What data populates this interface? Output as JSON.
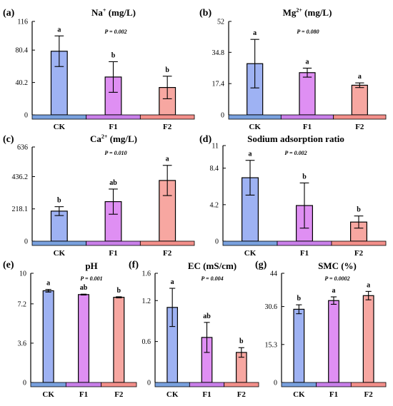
{
  "colors": {
    "CK": "#9eb2f3",
    "F1": "#df8ff3",
    "F2": "#f7a7a1",
    "CK_strip": "#79a1de",
    "F1_strip": "#c97fe9",
    "F2_strip": "#f38f8a",
    "axis": "#000000"
  },
  "chart_data": [
    {
      "type": "bar",
      "panel_label": "(a)",
      "title_parts": [
        "Na",
        "+",
        " (mg/L)"
      ],
      "p_value": "P = 0.002",
      "categories": [
        "CK",
        "F1",
        "F2"
      ],
      "values": [
        79,
        47,
        34
      ],
      "errors": [
        19,
        19,
        14
      ],
      "significance": [
        "a",
        "b",
        "b"
      ],
      "yticks": [
        "0",
        "40.2",
        "80.4",
        "116"
      ],
      "ylim": [
        0,
        116
      ]
    },
    {
      "type": "bar",
      "panel_label": "(b)",
      "title_parts": [
        "Mg",
        "2+",
        " (mg/L)"
      ],
      "p_value": "P = 0.080",
      "categories": [
        "CK",
        "F1",
        "F2"
      ],
      "values": [
        28.5,
        23.5,
        16.5
      ],
      "errors": [
        13.5,
        2.5,
        1.3
      ],
      "significance": [
        "a",
        "a",
        "a"
      ],
      "yticks": [
        "0",
        "17.4",
        "34.8",
        "52"
      ],
      "ylim": [
        0,
        52
      ]
    },
    {
      "type": "bar",
      "panel_label": "(c)",
      "title_parts": [
        "Ca",
        "2+",
        " (mg/L)"
      ],
      "p_value": "P = 0.010",
      "categories": [
        "CK",
        "F1",
        "F2"
      ],
      "values": [
        203,
        267,
        410
      ],
      "errors": [
        30,
        85,
        102
      ],
      "significance": [
        "b",
        "ab",
        "a"
      ],
      "yticks": [
        "0",
        "218.1",
        "436.2",
        "636"
      ],
      "ylim": [
        0,
        636
      ]
    },
    {
      "type": "bar",
      "panel_label": "(d)",
      "title_parts": [
        "Sodium adsorption ratio",
        "",
        ""
      ],
      "p_value": "P = 0.002",
      "categories": [
        "CK",
        "F1",
        "F2"
      ],
      "values": [
        7.3,
        4.1,
        2.2
      ],
      "errors": [
        2.0,
        2.6,
        0.7
      ],
      "significance": [
        "a",
        "b",
        "b"
      ],
      "yticks": [
        "0",
        "4.2",
        "8.4",
        "11"
      ],
      "ylim": [
        0,
        11
      ]
    },
    {
      "type": "bar",
      "panel_label": "(e)",
      "title_parts": [
        "pH",
        "",
        ""
      ],
      "p_value": "P = 0.001",
      "categories": [
        "CK",
        "F1",
        "F2"
      ],
      "values": [
        8.4,
        8.05,
        7.8
      ],
      "errors": [
        0.12,
        0.04,
        0.05
      ],
      "significance": [
        "a",
        "ab",
        "b"
      ],
      "yticks": [
        "0",
        "3.6",
        "7.2",
        "10"
      ],
      "ylim": [
        0,
        10
      ]
    },
    {
      "type": "bar",
      "panel_label": "(f)",
      "title_parts": [
        "EC  (mS/cm)",
        "",
        ""
      ],
      "p_value": "P = 0.004",
      "categories": [
        "CK",
        "F1",
        "F2"
      ],
      "values": [
        1.1,
        0.66,
        0.44
      ],
      "errors": [
        0.28,
        0.22,
        0.07
      ],
      "significance": [
        "a",
        "ab",
        "b"
      ],
      "yticks": [
        "0",
        "0.6",
        "1.2",
        "1.6"
      ],
      "ylim": [
        0,
        1.6
      ]
    },
    {
      "type": "bar",
      "panel_label": "(g)",
      "title_parts": [
        "SMC  (%)",
        "",
        ""
      ],
      "p_value": "P = 0.0002",
      "categories": [
        "CK",
        "F1",
        "F2"
      ],
      "values": [
        29.5,
        33.0,
        35.0
      ],
      "errors": [
        1.8,
        1.5,
        1.7
      ],
      "significance": [
        "b",
        "a",
        "a"
      ],
      "yticks": [
        "0",
        "15.3",
        "30.6",
        "44"
      ],
      "ylim": [
        0,
        44
      ]
    }
  ]
}
